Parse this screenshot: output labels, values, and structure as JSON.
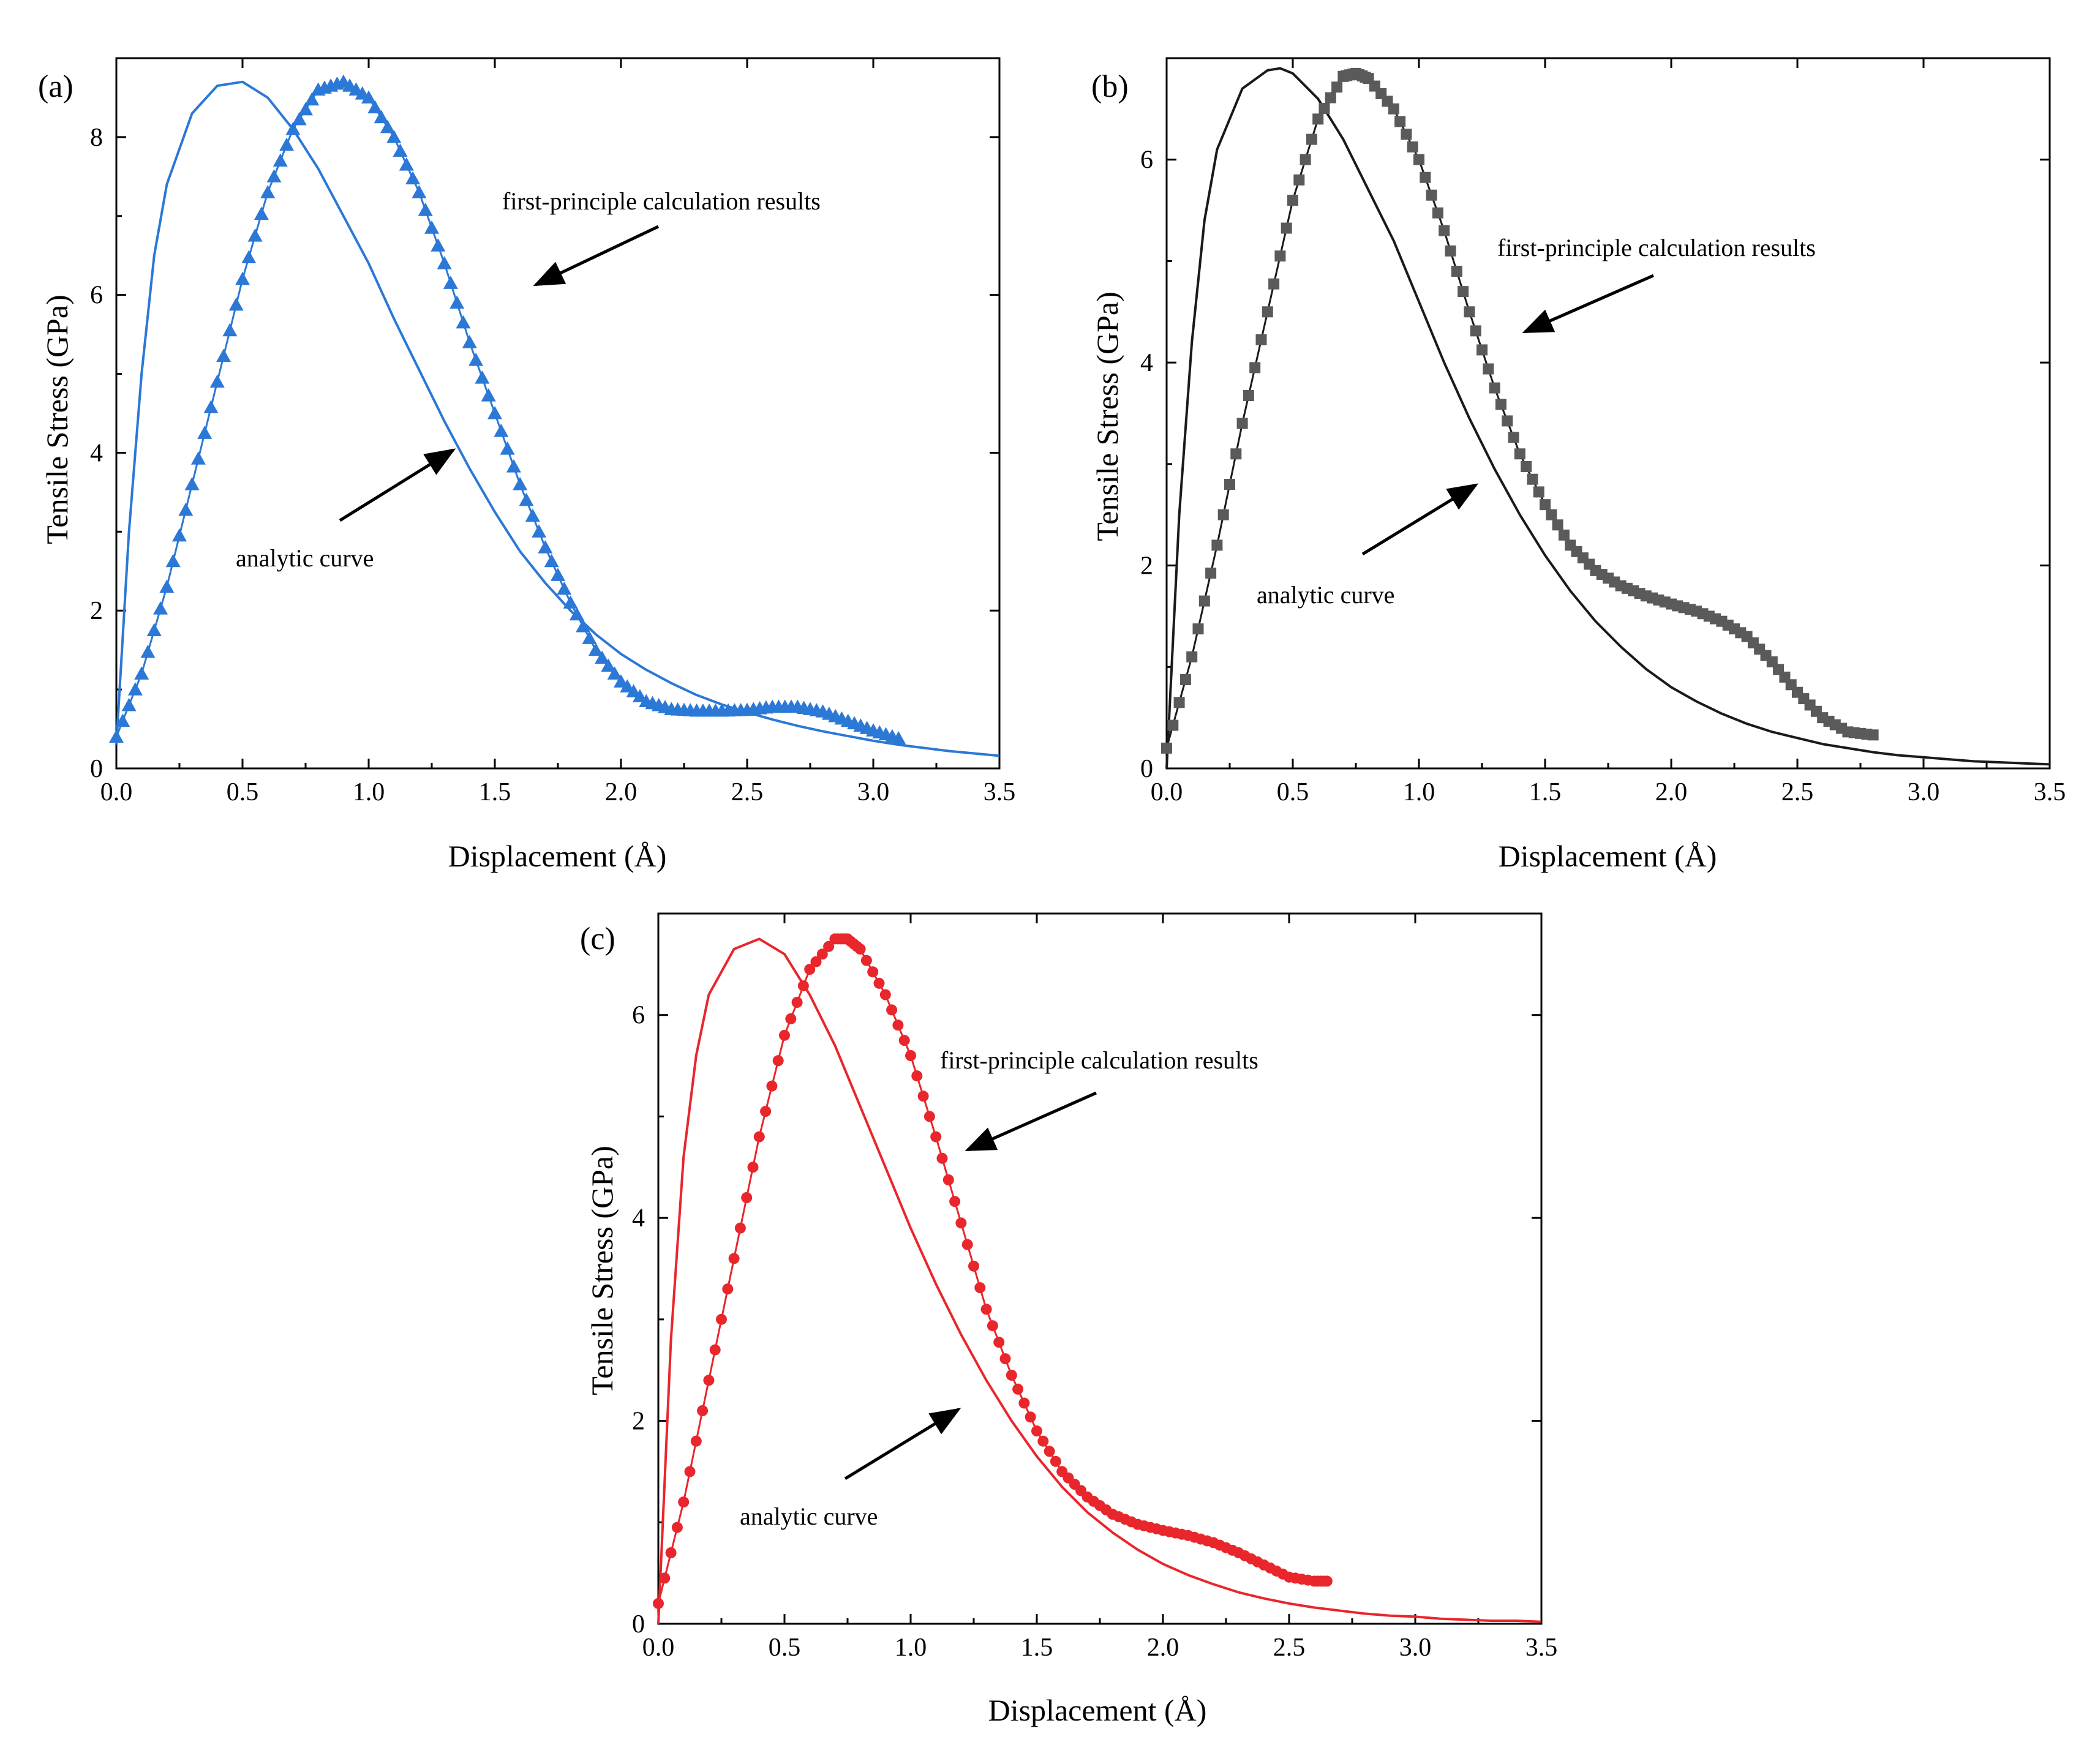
{
  "chart_data": [
    {
      "type": "line",
      "panel_label": "(a)",
      "xlabel": "Displacement (Å)",
      "ylabel": "Tensile Stress (GPa)",
      "xlim": [
        0,
        3.5
      ],
      "ylim": [
        0,
        9.0
      ],
      "xticks": [
        "0.0",
        "0.5",
        "1.0",
        "1.5",
        "2.0",
        "2.5",
        "3.0",
        "3.5"
      ],
      "xtick_values": [
        0,
        0.5,
        1.0,
        1.5,
        2.0,
        2.5,
        3.0,
        3.5
      ],
      "yticks": [
        "0",
        "2",
        "4",
        "6",
        "8"
      ],
      "ytick_values": [
        0,
        2,
        4,
        6,
        8
      ],
      "color": "#2b78d6",
      "marker": "triangle",
      "annotations": [
        {
          "text": "first-principle calculation results",
          "target_series": "first-principle calculation results"
        },
        {
          "text": "analytic curve",
          "target_series": "analytic curve"
        }
      ],
      "series": [
        {
          "name": "analytic curve",
          "style": "line",
          "x": [
            0.0,
            0.05,
            0.1,
            0.15,
            0.2,
            0.3,
            0.4,
            0.5,
            0.6,
            0.7,
            0.8,
            0.9,
            1.0,
            1.1,
            1.2,
            1.3,
            1.4,
            1.5,
            1.6,
            1.7,
            1.8,
            1.9,
            2.0,
            2.1,
            2.2,
            2.3,
            2.4,
            2.5,
            2.6,
            2.7,
            2.8,
            2.9,
            3.0,
            3.1,
            3.2,
            3.3,
            3.4,
            3.5
          ],
          "y": [
            0.3,
            3.0,
            5.0,
            6.5,
            7.4,
            8.3,
            8.65,
            8.7,
            8.5,
            8.1,
            7.6,
            7.0,
            6.4,
            5.7,
            5.05,
            4.4,
            3.8,
            3.25,
            2.75,
            2.35,
            2.0,
            1.7,
            1.45,
            1.25,
            1.08,
            0.93,
            0.81,
            0.71,
            0.62,
            0.54,
            0.47,
            0.41,
            0.35,
            0.3,
            0.26,
            0.22,
            0.19,
            0.16
          ]
        },
        {
          "name": "first-principle calculation results",
          "style": "line+markers",
          "x": [
            0.0,
            0.1,
            0.2,
            0.3,
            0.4,
            0.5,
            0.6,
            0.7,
            0.8,
            0.9,
            1.0,
            1.1,
            1.2,
            1.3,
            1.4,
            1.5,
            1.6,
            1.7,
            1.8,
            1.9,
            2.0,
            2.1,
            2.2,
            2.3,
            2.4,
            2.5,
            2.6,
            2.7,
            2.8,
            2.9,
            3.0,
            3.1
          ],
          "y": [
            0.4,
            1.2,
            2.3,
            3.6,
            4.9,
            6.2,
            7.3,
            8.1,
            8.6,
            8.7,
            8.5,
            8.0,
            7.3,
            6.4,
            5.4,
            4.5,
            3.6,
            2.8,
            2.1,
            1.5,
            1.1,
            0.85,
            0.75,
            0.73,
            0.73,
            0.74,
            0.78,
            0.78,
            0.72,
            0.6,
            0.48,
            0.38
          ]
        }
      ]
    },
    {
      "type": "line",
      "panel_label": "(b)",
      "xlabel": "Displacement (Å)",
      "ylabel": "Tensile Stress (GPa)",
      "xlim": [
        0,
        3.5
      ],
      "ylim": [
        0,
        7.0
      ],
      "xticks": [
        "0.0",
        "0.5",
        "1.0",
        "1.5",
        "2.0",
        "2.5",
        "3.0",
        "3.5"
      ],
      "xtick_values": [
        0,
        0.5,
        1.0,
        1.5,
        2.0,
        2.5,
        3.0,
        3.5
      ],
      "yticks": [
        "0",
        "2",
        "4",
        "6"
      ],
      "ytick_values": [
        0,
        2,
        4,
        6
      ],
      "color": "#1a1a1a",
      "marker_color": "#5a5a5a",
      "marker": "square",
      "annotations": [
        {
          "text": "first-principle calculation results",
          "target_series": "first-principle calculation results"
        },
        {
          "text": "analytic curve",
          "target_series": "analytic curve"
        }
      ],
      "series": [
        {
          "name": "analytic curve",
          "style": "line",
          "x": [
            0.0,
            0.05,
            0.1,
            0.15,
            0.2,
            0.3,
            0.4,
            0.45,
            0.5,
            0.6,
            0.7,
            0.8,
            0.9,
            1.0,
            1.1,
            1.2,
            1.3,
            1.4,
            1.5,
            1.6,
            1.7,
            1.8,
            1.9,
            2.0,
            2.1,
            2.2,
            2.3,
            2.4,
            2.5,
            2.6,
            2.7,
            2.8,
            2.9,
            3.0,
            3.1,
            3.2,
            3.3,
            3.4,
            3.5
          ],
          "y": [
            0.0,
            2.5,
            4.2,
            5.4,
            6.1,
            6.7,
            6.88,
            6.9,
            6.85,
            6.6,
            6.2,
            5.7,
            5.2,
            4.6,
            4.0,
            3.45,
            2.95,
            2.5,
            2.1,
            1.75,
            1.45,
            1.2,
            0.98,
            0.8,
            0.66,
            0.54,
            0.44,
            0.36,
            0.3,
            0.24,
            0.2,
            0.16,
            0.13,
            0.11,
            0.09,
            0.07,
            0.06,
            0.05,
            0.04
          ]
        },
        {
          "name": "first-principle calculation results",
          "style": "line+markers",
          "x": [
            0.0,
            0.1,
            0.2,
            0.3,
            0.4,
            0.5,
            0.6,
            0.7,
            0.75,
            0.8,
            0.9,
            1.0,
            1.1,
            1.2,
            1.3,
            1.4,
            1.5,
            1.6,
            1.7,
            1.8,
            1.9,
            2.0,
            2.1,
            2.2,
            2.3,
            2.4,
            2.5,
            2.6,
            2.7,
            2.8
          ],
          "y": [
            0.2,
            1.1,
            2.2,
            3.4,
            4.5,
            5.6,
            6.4,
            6.82,
            6.85,
            6.8,
            6.5,
            6.0,
            5.3,
            4.5,
            3.75,
            3.1,
            2.6,
            2.2,
            1.95,
            1.8,
            1.7,
            1.62,
            1.55,
            1.45,
            1.3,
            1.05,
            0.75,
            0.5,
            0.36,
            0.33
          ]
        }
      ]
    },
    {
      "type": "line",
      "panel_label": "(c)",
      "xlabel": "Displacement (Å)",
      "ylabel": "Tensile Stress (GPa)",
      "xlim": [
        0,
        3.5
      ],
      "ylim": [
        0,
        7.0
      ],
      "xticks": [
        "0.0",
        "0.5",
        "1.0",
        "1.5",
        "2.0",
        "2.5",
        "3.0",
        "3.5"
      ],
      "xtick_values": [
        0,
        0.5,
        1.0,
        1.5,
        2.0,
        2.5,
        3.0,
        3.5
      ],
      "yticks": [
        "0",
        "2",
        "4",
        "6"
      ],
      "ytick_values": [
        0,
        2,
        4,
        6
      ],
      "color": "#e8262c",
      "marker": "circle",
      "annotations": [
        {
          "text": "first-principle calculation results",
          "target_series": "first-principle calculation results"
        },
        {
          "text": "analytic curve",
          "target_series": "analytic curve"
        }
      ],
      "series": [
        {
          "name": "analytic curve",
          "style": "line",
          "x": [
            0.0,
            0.05,
            0.1,
            0.15,
            0.2,
            0.3,
            0.4,
            0.5,
            0.6,
            0.7,
            0.8,
            0.9,
            1.0,
            1.1,
            1.2,
            1.3,
            1.4,
            1.5,
            1.6,
            1.7,
            1.8,
            1.9,
            2.0,
            2.1,
            2.2,
            2.3,
            2.4,
            2.5,
            2.6,
            2.7,
            2.8,
            2.9,
            3.0,
            3.1,
            3.2,
            3.3,
            3.4,
            3.5
          ],
          "y": [
            0.0,
            2.8,
            4.6,
            5.6,
            6.2,
            6.65,
            6.75,
            6.6,
            6.2,
            5.7,
            5.1,
            4.5,
            3.9,
            3.35,
            2.85,
            2.4,
            2.0,
            1.65,
            1.35,
            1.1,
            0.9,
            0.73,
            0.59,
            0.48,
            0.39,
            0.31,
            0.25,
            0.2,
            0.16,
            0.13,
            0.1,
            0.08,
            0.07,
            0.05,
            0.04,
            0.03,
            0.03,
            0.02
          ]
        },
        {
          "name": "first-principle calculation results",
          "style": "line+markers",
          "x": [
            0.0,
            0.1,
            0.2,
            0.3,
            0.4,
            0.5,
            0.6,
            0.7,
            0.75,
            0.8,
            0.9,
            1.0,
            1.1,
            1.2,
            1.3,
            1.4,
            1.5,
            1.6,
            1.7,
            1.8,
            1.9,
            2.0,
            2.1,
            2.2,
            2.3,
            2.4,
            2.5,
            2.6,
            2.65
          ],
          "y": [
            0.2,
            1.2,
            2.4,
            3.6,
            4.8,
            5.8,
            6.45,
            6.75,
            6.75,
            6.65,
            6.2,
            5.6,
            4.8,
            3.95,
            3.1,
            2.45,
            1.9,
            1.5,
            1.25,
            1.08,
            0.98,
            0.92,
            0.87,
            0.8,
            0.7,
            0.58,
            0.46,
            0.42,
            0.42
          ]
        }
      ]
    }
  ]
}
